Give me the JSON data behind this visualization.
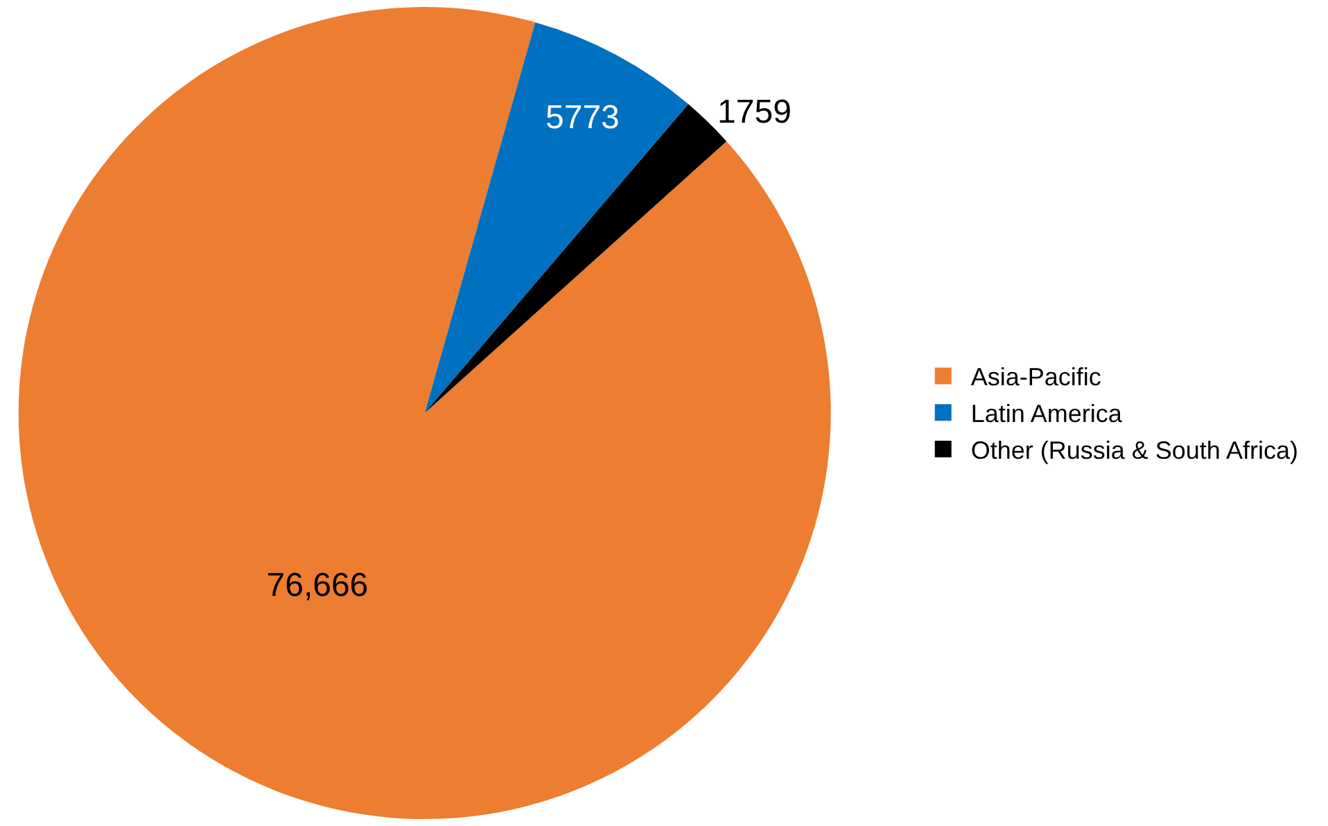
{
  "chart_data": {
    "type": "pie",
    "categories": [
      "Asia-Pacific",
      "Latin America",
      "Other (Russia & South Africa)"
    ],
    "values": [
      76666,
      5773,
      1759
    ],
    "value_labels": [
      "76,666",
      "5773",
      "1759"
    ],
    "colors": [
      "#ed7d31",
      "#0070c0",
      "#000000"
    ],
    "legend": "right"
  }
}
